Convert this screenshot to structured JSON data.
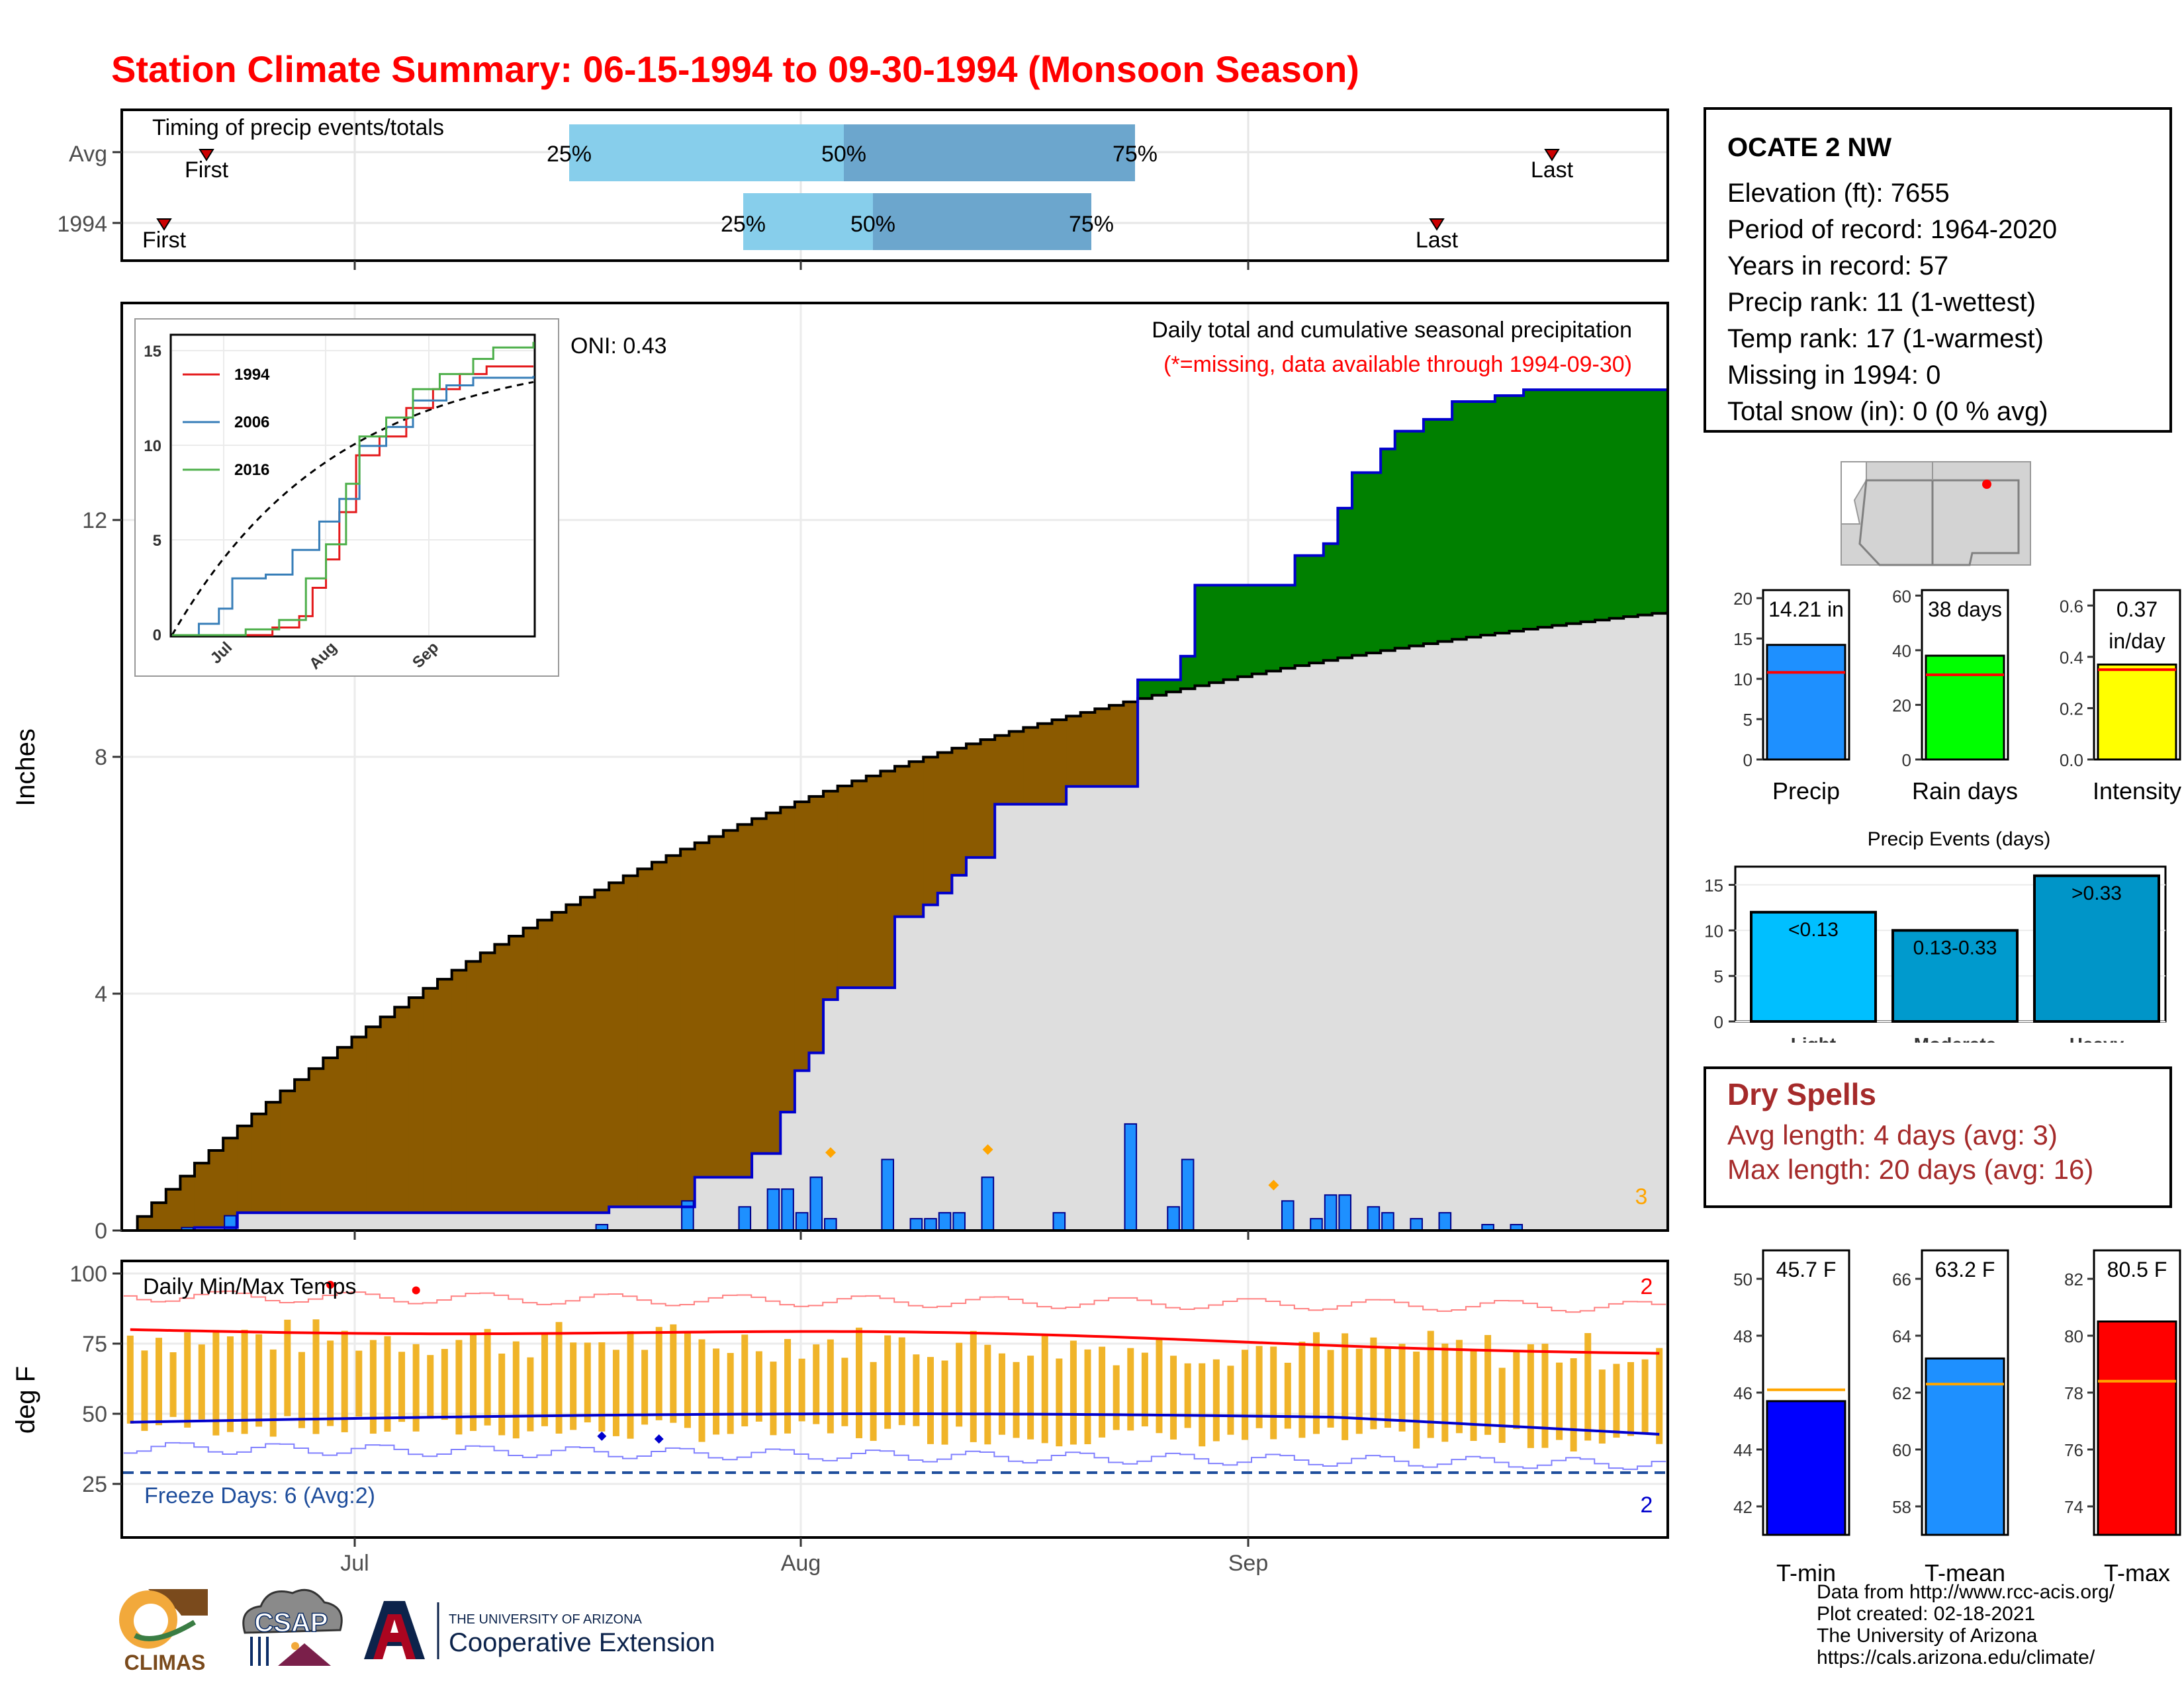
{
  "title": "Station Climate Summary: 06-15-1994 to 09-30-1994 (Monsoon Season)",
  "timing": {
    "title": "Timing of precip events/totals",
    "rows": [
      {
        "label": "Avg",
        "first": "First",
        "last": "Last",
        "p25": "25%",
        "p50": "50%",
        "p75": "75%"
      },
      {
        "label": "1994",
        "first": "First",
        "last": "Last",
        "p25": "25%",
        "p50": "50%",
        "p75": "75%"
      }
    ]
  },
  "main_chart": {
    "ylabel": "Inches",
    "oni": "ONI: 0.43",
    "legend_title": "Daily total and cumulative seasonal precipitation",
    "legend_note": "(*=missing, data available through 1994-09-30)",
    "corner_count": "3",
    "y_ticks": [
      "0",
      "4",
      "8",
      "12"
    ],
    "ylim": [
      0,
      15.5
    ]
  },
  "inset": {
    "series": [
      "1994",
      "2006",
      "2016"
    ],
    "colors": [
      "#e41a1c",
      "#377eb8",
      "#4daf4a"
    ],
    "y_ticks": [
      "0",
      "5",
      "10",
      "15"
    ],
    "x_ticks": [
      "Jul",
      "Aug",
      "Sep"
    ]
  },
  "temp_chart": {
    "ylabel": "deg F",
    "title": "Daily Min/Max Temps",
    "freeze": "Freeze Days: 6 (Avg:2)",
    "count_top": "2",
    "count_bottom": "2",
    "y_ticks": [
      "25",
      "50",
      "75",
      "100"
    ],
    "x_ticks": [
      "Jul",
      "Aug",
      "Sep"
    ]
  },
  "station": {
    "name": "OCATE 2 NW",
    "elevation": "Elevation (ft): 7655",
    "period": "Period of record: 1964-2020",
    "years": "Years in record: 57",
    "precip_rank": "Precip rank: 11 (1-wettest)",
    "temp_rank": "Temp rank: 17 (1-warmest)",
    "missing": "Missing in 1994: 0",
    "snow": "Total snow (in): 0 (0 % avg)"
  },
  "precip_stats": [
    {
      "label": "Precip",
      "value_text": "14.21 in",
      "value": 14.21,
      "avg": 10.8,
      "ymax": 21,
      "ticks": [
        "0",
        "5",
        "10",
        "15",
        "20"
      ],
      "color": "#1e90ff"
    },
    {
      "label": "Rain days",
      "value_text": "38 days",
      "value": 38,
      "avg": 31,
      "ymax": 62,
      "ticks": [
        "0",
        "20",
        "40",
        "60"
      ],
      "color": "#00ff00"
    },
    {
      "label": "Intensity",
      "value_text": "0.37 in/day",
      "value": 0.37,
      "avg": 0.35,
      "ymax": 0.66,
      "ticks": [
        "0.0",
        "0.2",
        "0.4",
        "0.6"
      ],
      "color": "#ffff00"
    }
  ],
  "events": {
    "title": "Precip Events (days)",
    "categories": [
      "Light",
      "Moderate",
      "Heavy"
    ],
    "labels": [
      "<0.13",
      "0.13-0.33",
      ">0.33"
    ],
    "values": [
      12,
      10,
      16
    ],
    "colors": [
      "#00bfff",
      "#009acd",
      "#0095c8"
    ],
    "y_ticks": [
      "0",
      "5",
      "10",
      "15"
    ]
  },
  "dry_spells": {
    "title": "Dry Spells",
    "avg": "Avg length: 4 days (avg: 3)",
    "max": "Max length: 20 days (avg: 16)"
  },
  "temp_stats": [
    {
      "label": "T-min",
      "value_text": "45.7 F",
      "value": 45.7,
      "avg": 46.1,
      "ymin": 41,
      "ymax": 51,
      "ticks": [
        "42",
        "44",
        "46",
        "48",
        "50"
      ],
      "color": "#0000ff"
    },
    {
      "label": "T-mean",
      "value_text": "63.2 F",
      "value": 63.2,
      "avg": 62.3,
      "ymin": 57,
      "ymax": 67,
      "ticks": [
        "58",
        "60",
        "62",
        "64",
        "66"
      ],
      "color": "#1e90ff"
    },
    {
      "label": "T-max",
      "value_text": "80.5 F",
      "value": 80.5,
      "avg": 78.4,
      "ymin": 73,
      "ymax": 83,
      "ticks": [
        "74",
        "76",
        "78",
        "80",
        "82"
      ],
      "color": "#ff0000"
    }
  ],
  "footer": {
    "line1": "Data from http://www.rcc-acis.org/",
    "line2": "Plot created: 02-18-2021",
    "line3": "The University of Arizona",
    "line4": "https://cals.arizona.edu/climate/"
  },
  "logos": {
    "climas": "CLIMAS",
    "csap": "CSAP",
    "ua_small": "THE UNIVERSITY OF ARIZONA",
    "ua_big": "Cooperative Extension"
  }
}
